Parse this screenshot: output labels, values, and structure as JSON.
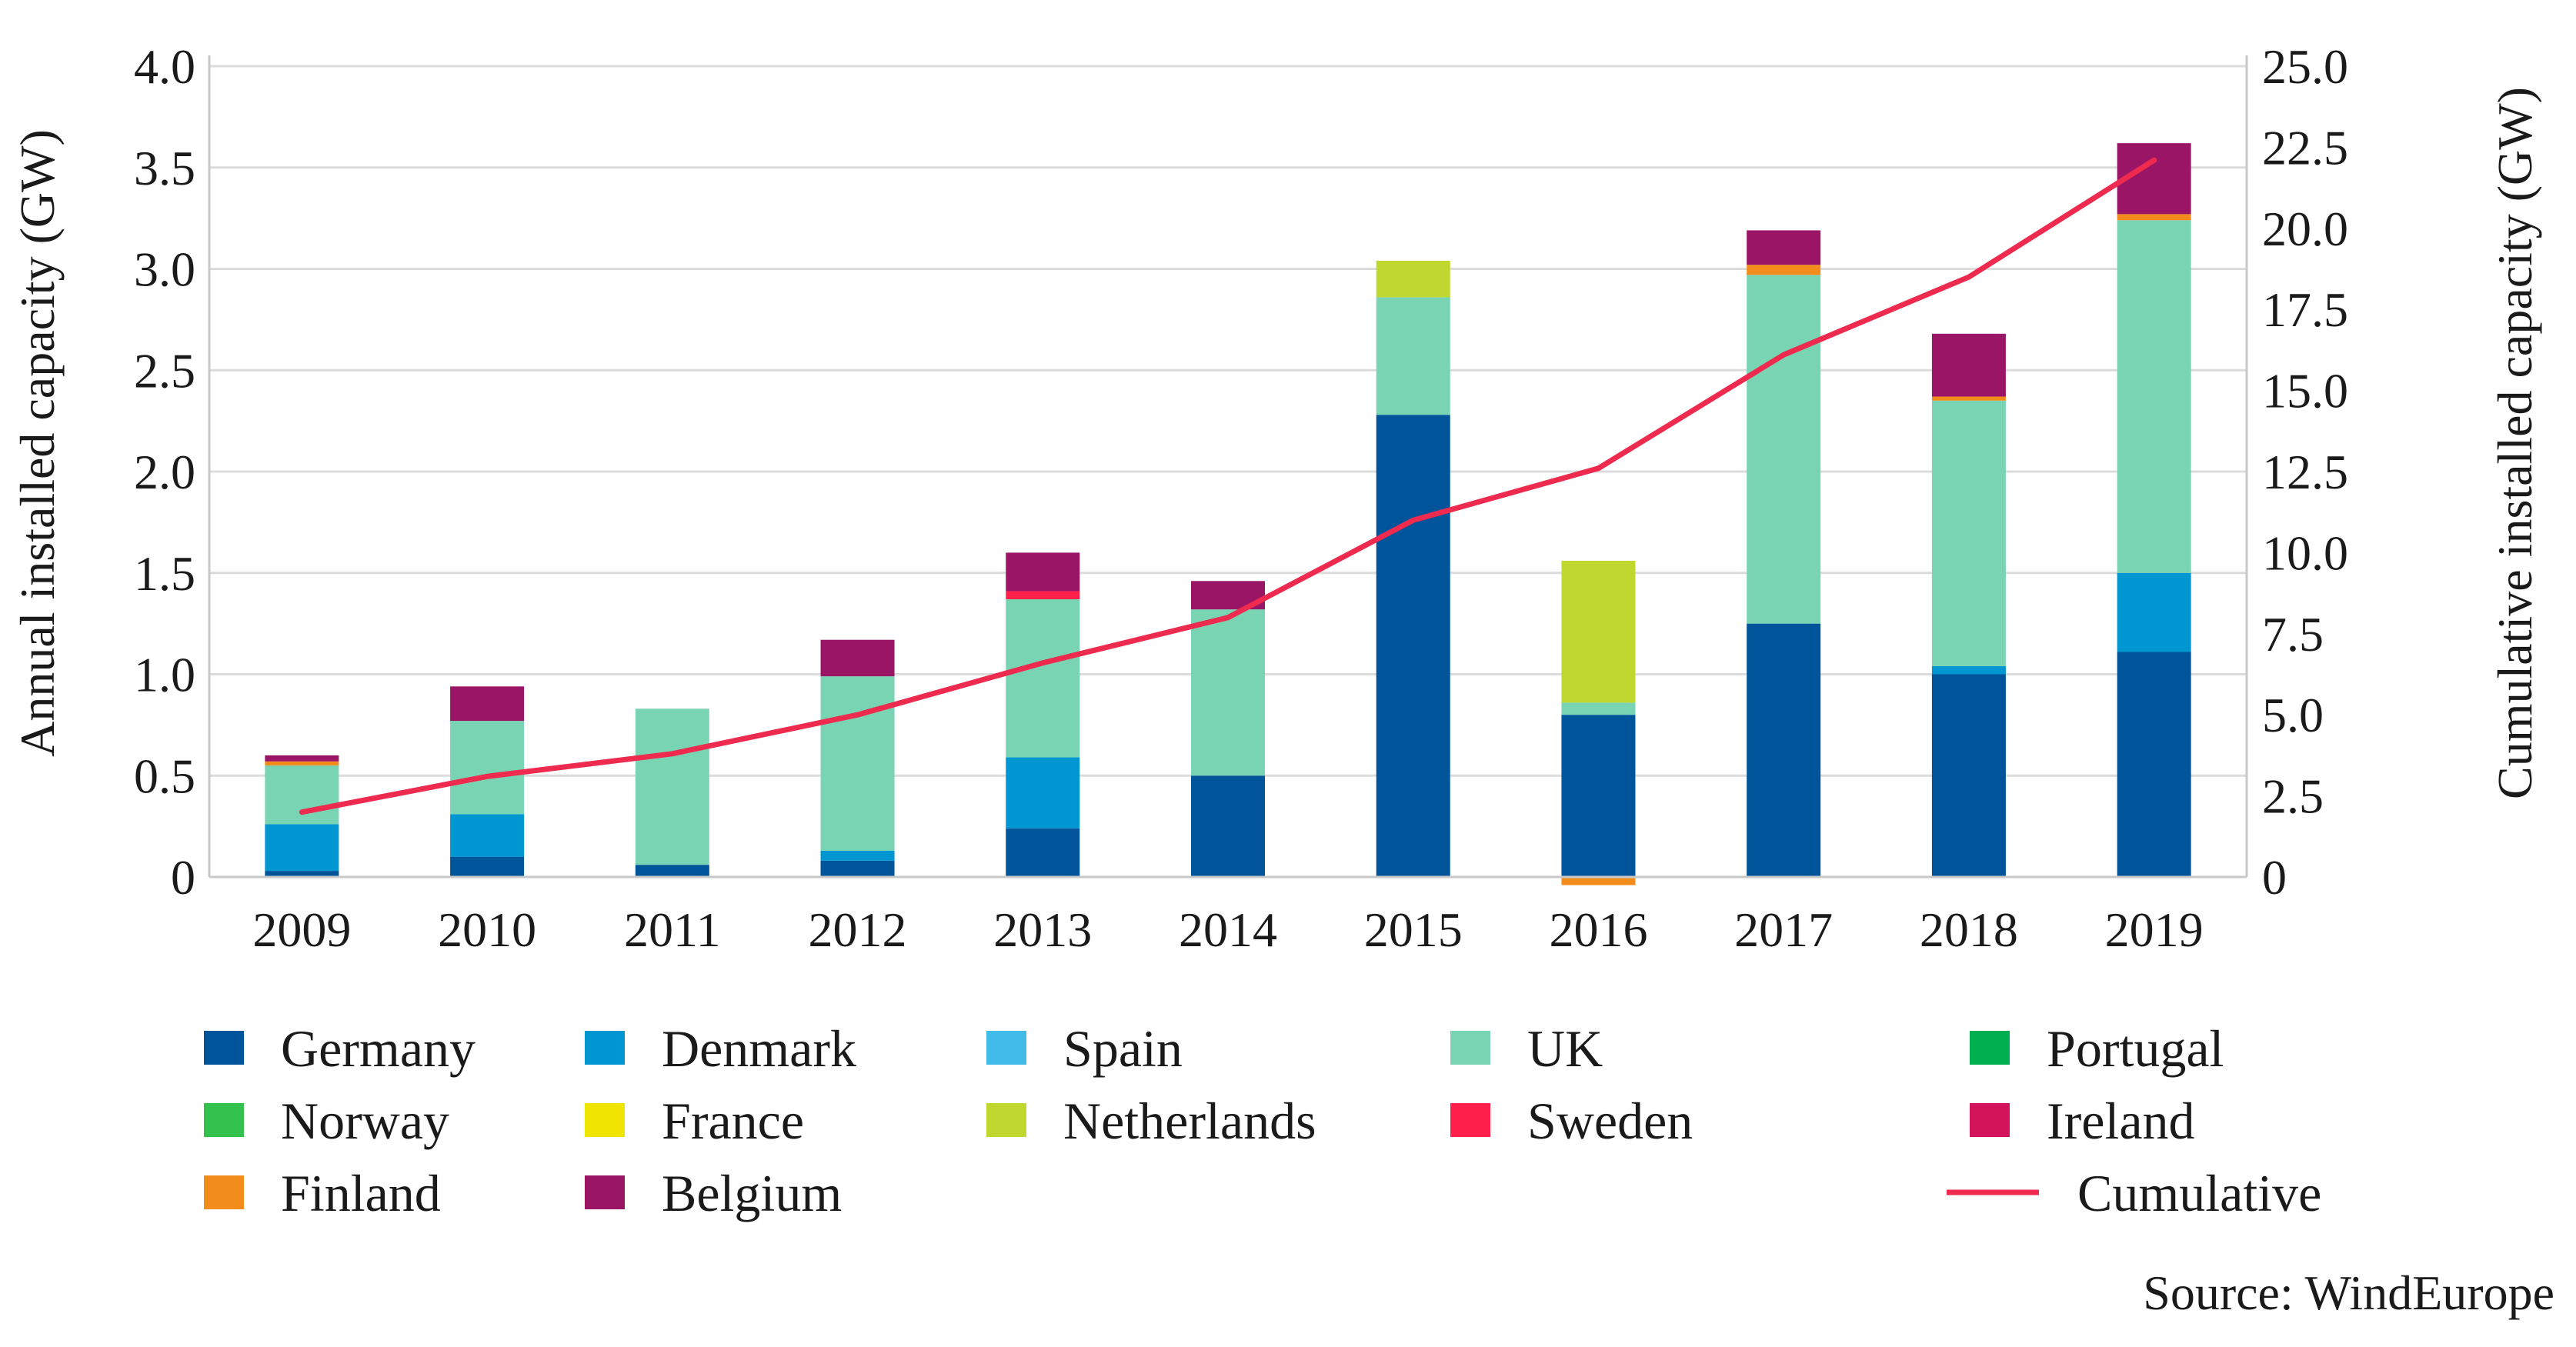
{
  "chart_data": {
    "type": "bar",
    "stacked": true,
    "categories": [
      "2009",
      "2010",
      "2011",
      "2012",
      "2013",
      "2014",
      "2015",
      "2016",
      "2017",
      "2018",
      "2019"
    ],
    "series": [
      {
        "name": "Germany",
        "color": "#00549a",
        "values": [
          0.03,
          0.1,
          0.06,
          0.08,
          0.24,
          0.5,
          2.28,
          0.8,
          1.25,
          1.0,
          1.11
        ]
      },
      {
        "name": "Denmark",
        "color": "#0096d1",
        "values": [
          0.23,
          0.21,
          0.0,
          0.05,
          0.35,
          0.0,
          0.0,
          0.0,
          0.0,
          0.04,
          0.39
        ]
      },
      {
        "name": "Spain",
        "color": "#40bbea",
        "values": [
          0.0,
          0.0,
          0.0,
          0.0,
          0.0,
          0.0,
          0.0,
          0.0,
          0.0,
          0.0,
          0.0
        ]
      },
      {
        "name": "UK",
        "color": "#79d4b4",
        "values": [
          0.29,
          0.46,
          0.77,
          0.86,
          0.78,
          0.82,
          0.58,
          0.06,
          1.72,
          1.31,
          1.74
        ]
      },
      {
        "name": "Portugal",
        "color": "#00b050",
        "values": [
          0.0,
          0.0,
          0.0,
          0.0,
          0.0,
          0.0,
          0.0,
          0.0,
          0.0,
          0.0,
          0.0
        ]
      },
      {
        "name": "Norway",
        "color": "#33c24d",
        "values": [
          0.0,
          0.0,
          0.0,
          0.0,
          0.0,
          0.0,
          0.0,
          0.0,
          0.0,
          0.0,
          0.0
        ]
      },
      {
        "name": "France",
        "color": "#f0e500",
        "values": [
          0.0,
          0.0,
          0.0,
          0.0,
          0.0,
          0.0,
          0.0,
          0.0,
          0.0,
          0.0,
          0.0
        ]
      },
      {
        "name": "Netherlands",
        "color": "#c0d72f",
        "values": [
          0.0,
          0.0,
          0.0,
          0.0,
          0.0,
          0.0,
          0.18,
          0.7,
          0.0,
          0.0,
          0.0
        ]
      },
      {
        "name": "Sweden",
        "color": "#ff1f4b",
        "values": [
          0.0,
          0.0,
          0.0,
          0.0,
          0.04,
          0.0,
          0.0,
          0.0,
          0.0,
          0.0,
          0.0
        ]
      },
      {
        "name": "Ireland",
        "color": "#d4145a",
        "values": [
          0.0,
          0.0,
          0.0,
          0.0,
          0.0,
          0.0,
          0.0,
          0.0,
          0.0,
          0.0,
          0.0
        ]
      },
      {
        "name": "Finland",
        "color": "#f28c1b",
        "values": [
          0.02,
          0.0,
          0.0,
          0.0,
          0.0,
          0.0,
          0.0,
          -0.04,
          0.05,
          0.02,
          0.03
        ]
      },
      {
        "name": "Belgium",
        "color": "#9b1566",
        "values": [
          0.03,
          0.17,
          0.0,
          0.18,
          0.19,
          0.14,
          0.0,
          0.0,
          0.17,
          0.31,
          0.35
        ]
      }
    ],
    "line": {
      "name": "Cumulative",
      "color": "#ee2a4f",
      "axis": "right",
      "values": [
        2.0,
        3.1,
        3.8,
        5.0,
        6.6,
        8.0,
        11.0,
        12.6,
        16.1,
        18.5,
        22.1
      ]
    },
    "ylabel": "Annual installed capacity (GW)",
    "ylabel_right": "Cumulative installed capacity (GW)",
    "ylim": [
      0,
      4.0
    ],
    "ylim_right": [
      0,
      25.0
    ],
    "yticks": [
      "0",
      "0.5",
      "1.0",
      "1.5",
      "2.0",
      "2.5",
      "3.0",
      "3.5",
      "4.0"
    ],
    "yticks_right": [
      "0",
      "2.5",
      "5.0",
      "7.5",
      "10.0",
      "12.5",
      "15.0",
      "17.5",
      "20.0",
      "22.5",
      "25.0"
    ],
    "grid": true,
    "legend_position": "bottom",
    "legend_order": [
      "Germany",
      "Denmark",
      "Spain",
      "UK",
      "Portugal",
      "Norway",
      "France",
      "Netherlands",
      "Sweden",
      "Ireland",
      "Finland",
      "Belgium",
      "Cumulative"
    ],
    "source": "Source: WindEurope"
  }
}
